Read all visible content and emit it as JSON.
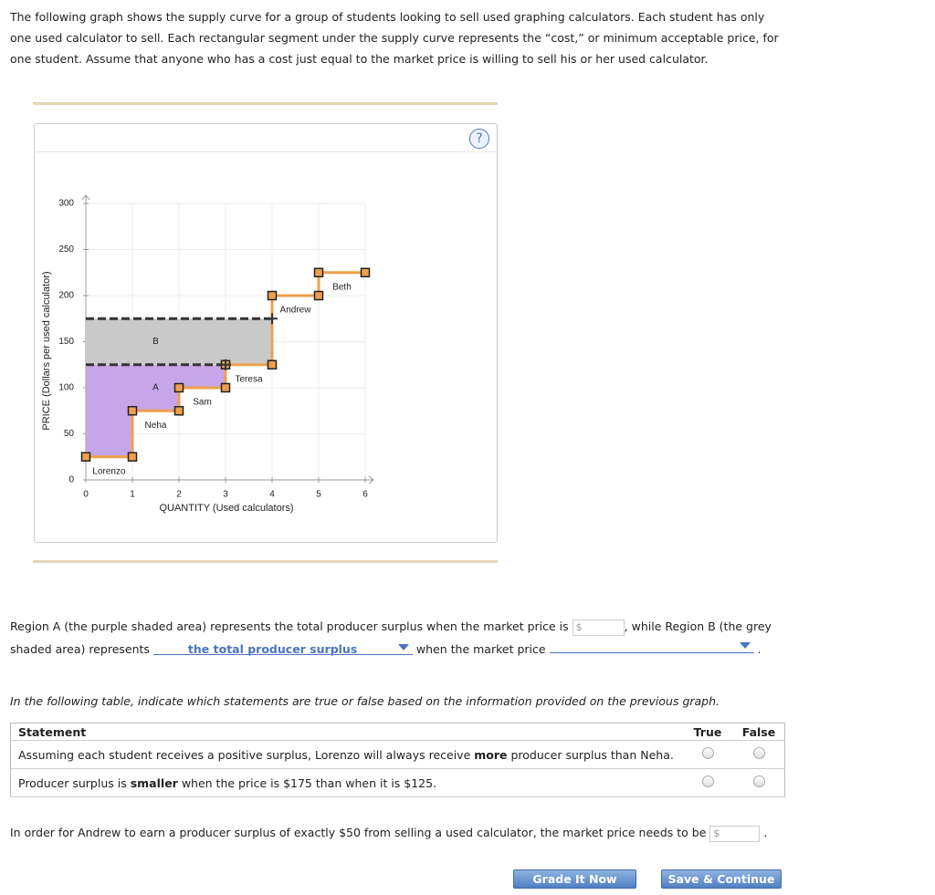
{
  "intro": [
    "The following graph shows the supply curve for a group of students looking to sell used graphing calculators. Each student has only",
    "one used calculator to sell. Each rectangular segment under the supply curve represents the “cost,” or minimum acceptable price, for",
    "one student. Assume that anyone who has a cost just equal to the market price is willing to sell his or her used calculator."
  ],
  "help": "?",
  "chart_data": {
    "type": "step",
    "x_label": "QUANTITY (Used calculators)",
    "y_label": "PRICE (Dollars per used calculator)",
    "categories": [
      "Lorenzo",
      "Neha",
      "Sam",
      "Teresa",
      "Andrew",
      "Beth"
    ],
    "values": [
      25,
      75,
      100,
      125,
      200,
      225
    ],
    "color": "#f0a04b",
    "xlim": [
      0,
      6
    ],
    "xticks": [
      0,
      1,
      2,
      3,
      4,
      5,
      6
    ],
    "ylim": [
      0,
      300
    ],
    "yticks": [
      0,
      50,
      100,
      150,
      200,
      250,
      300
    ],
    "grid": true,
    "regions": [
      {
        "label": "A",
        "color": "#c6a6e8",
        "price": 125,
        "quantity": 3
      },
      {
        "label": "B",
        "color": "#c9c9c9",
        "price": 175,
        "quantity": 4
      }
    ]
  },
  "question": {
    "line1": "Region A (the purple shaded area) represents the total producer surplus when the market price is",
    "currency": "$",
    "line1_end": ", while Region B (the grey",
    "line2": "shaded area) represents",
    "dropdown1": "the total producer surplus",
    "line2_mid": "when the market price",
    "line2_end": "."
  },
  "instruction": "In the following table, indicate which statements are true or false based on the information provided on the previous graph.",
  "table": {
    "headers": [
      "Statement",
      "True",
      "False"
    ],
    "rows": [
      [
        "Assuming each student receives a positive surplus, Lorenzo will always receive ",
        "more",
        " producer surplus than Neha."
      ],
      [
        "Producer surplus is ",
        "smaller",
        " when the price is $175 than when it is $125."
      ]
    ]
  },
  "andrew": {
    "text": "In order for Andrew to earn a producer surplus of exactly $50 from selling a used calculator, the market price needs to be",
    "currency": "$",
    "end": "."
  },
  "buttons": [
    "Grade It Now",
    "Save & Continue"
  ]
}
